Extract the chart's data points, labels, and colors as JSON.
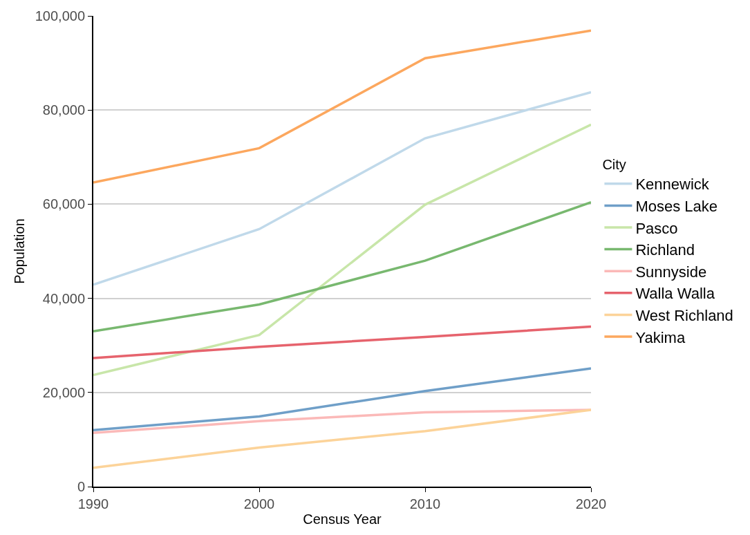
{
  "chart_data": {
    "type": "line",
    "xlabel": "Census Year",
    "ylabel": "Population",
    "legend_title": "City",
    "x": [
      1990,
      2000,
      2010,
      2020
    ],
    "xlim": [
      1990,
      2020
    ],
    "xticks": [
      1990,
      2000,
      2010,
      2020
    ],
    "ylim": [
      0,
      100000
    ],
    "yticks": [
      {
        "value": 0,
        "label": "0"
      },
      {
        "value": 20000,
        "label": "20,000"
      },
      {
        "value": 40000,
        "label": "40,000"
      },
      {
        "value": 60000,
        "label": "60,000"
      },
      {
        "value": 80000,
        "label": "80,000"
      },
      {
        "value": 100000,
        "label": "100,000"
      }
    ],
    "grid": "y",
    "legend": "right",
    "marker": "none",
    "line_style": "solid",
    "series": [
      {
        "name": "Kennewick",
        "color": "#c0d9ea",
        "values": [
          42900,
          54700,
          74000,
          83800
        ]
      },
      {
        "name": "Moses Lake",
        "color": "#6f9fc8",
        "values": [
          12000,
          14900,
          20300,
          25100
        ]
      },
      {
        "name": "Pasco",
        "color": "#c8e6a9",
        "values": [
          23700,
          32200,
          59900,
          76900
        ]
      },
      {
        "name": "Richland",
        "color": "#78b86f",
        "values": [
          33000,
          38700,
          48000,
          60400
        ]
      },
      {
        "name": "Sunnyside",
        "color": "#fbb9b8",
        "values": [
          11400,
          13900,
          15800,
          16300
        ]
      },
      {
        "name": "Walla Walla",
        "color": "#e6636d",
        "values": [
          27300,
          29700,
          31800,
          34000
        ]
      },
      {
        "name": "West Richland",
        "color": "#fcd399",
        "values": [
          4000,
          8300,
          11800,
          16300
        ]
      },
      {
        "name": "Yakima",
        "color": "#fca75e",
        "values": [
          64600,
          71900,
          91000,
          96900
        ]
      }
    ]
  }
}
